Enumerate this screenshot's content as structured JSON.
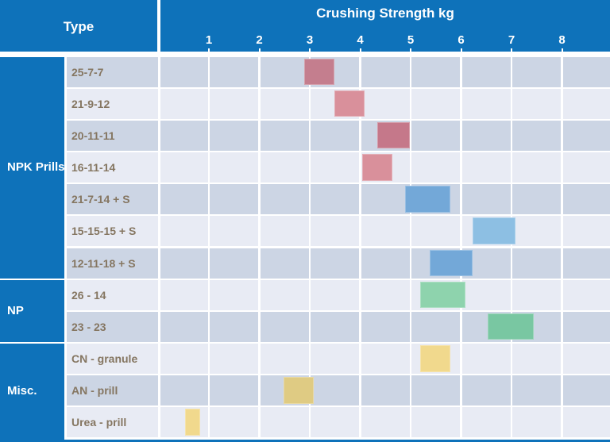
{
  "header": {
    "type_label": "Type",
    "title": "Crushing Strength kg"
  },
  "colors": {
    "header_blue": "#0e72ba",
    "row_stripe_dark": "#ccd5e4",
    "row_stripe_light": "#e8ebf4",
    "separator_white": "#ffffff",
    "row_label_text": "#857661",
    "header_text": "#ffffff"
  },
  "chart_data": {
    "type": "bar",
    "subtype": "horizontal-range-bars",
    "title": "Crushing Strength kg",
    "xlabel": "Crushing Strength kg",
    "x_axis": {
      "ticks": [
        1,
        2,
        3,
        4,
        5,
        6,
        7,
        8
      ],
      "range": [
        0,
        9
      ],
      "unit": "kg",
      "grid": true
    },
    "legend_position": "none",
    "groups": [
      {
        "label": "NPK Prills",
        "items": [
          {
            "label": "25-7-7",
            "range": [
              2.9,
              3.5
            ],
            "color": "#c47e8e"
          },
          {
            "label": "21-9-12",
            "range": [
              3.5,
              4.1
            ],
            "color": "#d9909b"
          },
          {
            "label": "20-11-11",
            "range": [
              4.35,
              5.0
            ],
            "color": "#c5788a"
          },
          {
            "label": "16-11-14",
            "range": [
              4.05,
              4.65
            ],
            "color": "#d9909b"
          },
          {
            "label": "21-7-14 + S",
            "range": [
              4.9,
              5.8
            ],
            "color": "#73a8d8"
          },
          {
            "label": "15-15-15 + S",
            "range": [
              6.25,
              7.1
            ],
            "color": "#8dbfe3"
          },
          {
            "label": "12-11-18 + S",
            "range": [
              5.4,
              6.25
            ],
            "color": "#73a8d8"
          }
        ]
      },
      {
        "label": "NP",
        "items": [
          {
            "label": "26 - 14",
            "range": [
              5.2,
              6.1
            ],
            "color": "#8ed3ad"
          },
          {
            "label": "23 - 23",
            "range": [
              6.55,
              7.45
            ],
            "color": "#79c7a2"
          }
        ]
      },
      {
        "label": "Misc.",
        "items": [
          {
            "label": "CN - granule",
            "range": [
              5.2,
              5.8
            ],
            "color": "#f1d98d"
          },
          {
            "label": "AN - prill",
            "range": [
              2.5,
              3.1
            ],
            "color": "#dfcb83"
          },
          {
            "label": "Urea - prill",
            "range": [
              0.55,
              0.85
            ],
            "color": "#f1d98d"
          }
        ]
      }
    ]
  }
}
